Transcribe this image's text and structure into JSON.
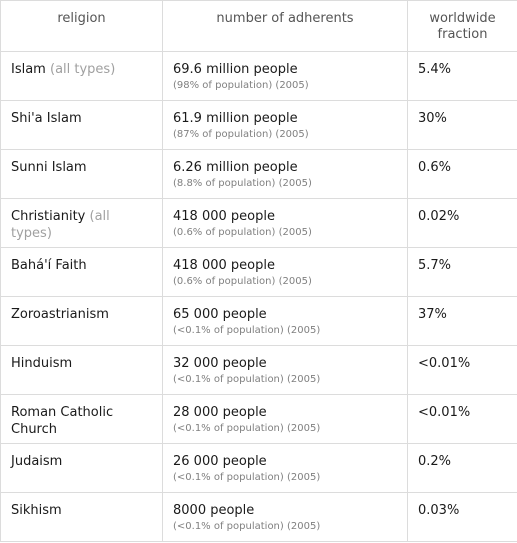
{
  "headers": [
    "religion",
    "number of adherents",
    "worldwide fraction"
  ],
  "rows": [
    {
      "religion": "Islam",
      "qualifier": "(all types)",
      "adherents": "69.6 million people",
      "detail": "(98% of population) (2005)",
      "fraction": "5.4%"
    },
    {
      "religion": "Shi'a Islam",
      "qualifier": "",
      "adherents": "61.9 million people",
      "detail": "(87% of population) (2005)",
      "fraction": "30%"
    },
    {
      "religion": "Sunni Islam",
      "qualifier": "",
      "adherents": "6.26 million people",
      "detail": "(8.8% of population) (2005)",
      "fraction": "0.6%"
    },
    {
      "religion": "Christianity",
      "qualifier": "(all types)",
      "adherents": "418 000 people",
      "detail": "(0.6% of population) (2005)",
      "fraction": "0.02%"
    },
    {
      "religion": "Bahá'í Faith",
      "qualifier": "",
      "adherents": "418 000 people",
      "detail": "(0.6% of population) (2005)",
      "fraction": "5.7%"
    },
    {
      "religion": "Zoroastrianism",
      "qualifier": "",
      "adherents": "65 000 people",
      "detail": "(<0.1% of population) (2005)",
      "fraction": "37%"
    },
    {
      "religion": "Hinduism",
      "qualifier": "",
      "adherents": "32 000 people",
      "detail": "(<0.1% of population) (2005)",
      "fraction": "<0.01%"
    },
    {
      "religion": "Roman Catholic Church",
      "qualifier": "",
      "adherents": "28 000 people",
      "detail": "(<0.1% of population) (2005)",
      "fraction": "<0.01%"
    },
    {
      "religion": "Judaism",
      "qualifier": "",
      "adherents": "26 000 people",
      "detail": "(<0.1% of population) (2005)",
      "fraction": "0.2%"
    },
    {
      "religion": "Sikhism",
      "qualifier": "",
      "adherents": "8000 people",
      "detail": "(<0.1% of population) (2005)",
      "fraction": "0.03%"
    }
  ]
}
